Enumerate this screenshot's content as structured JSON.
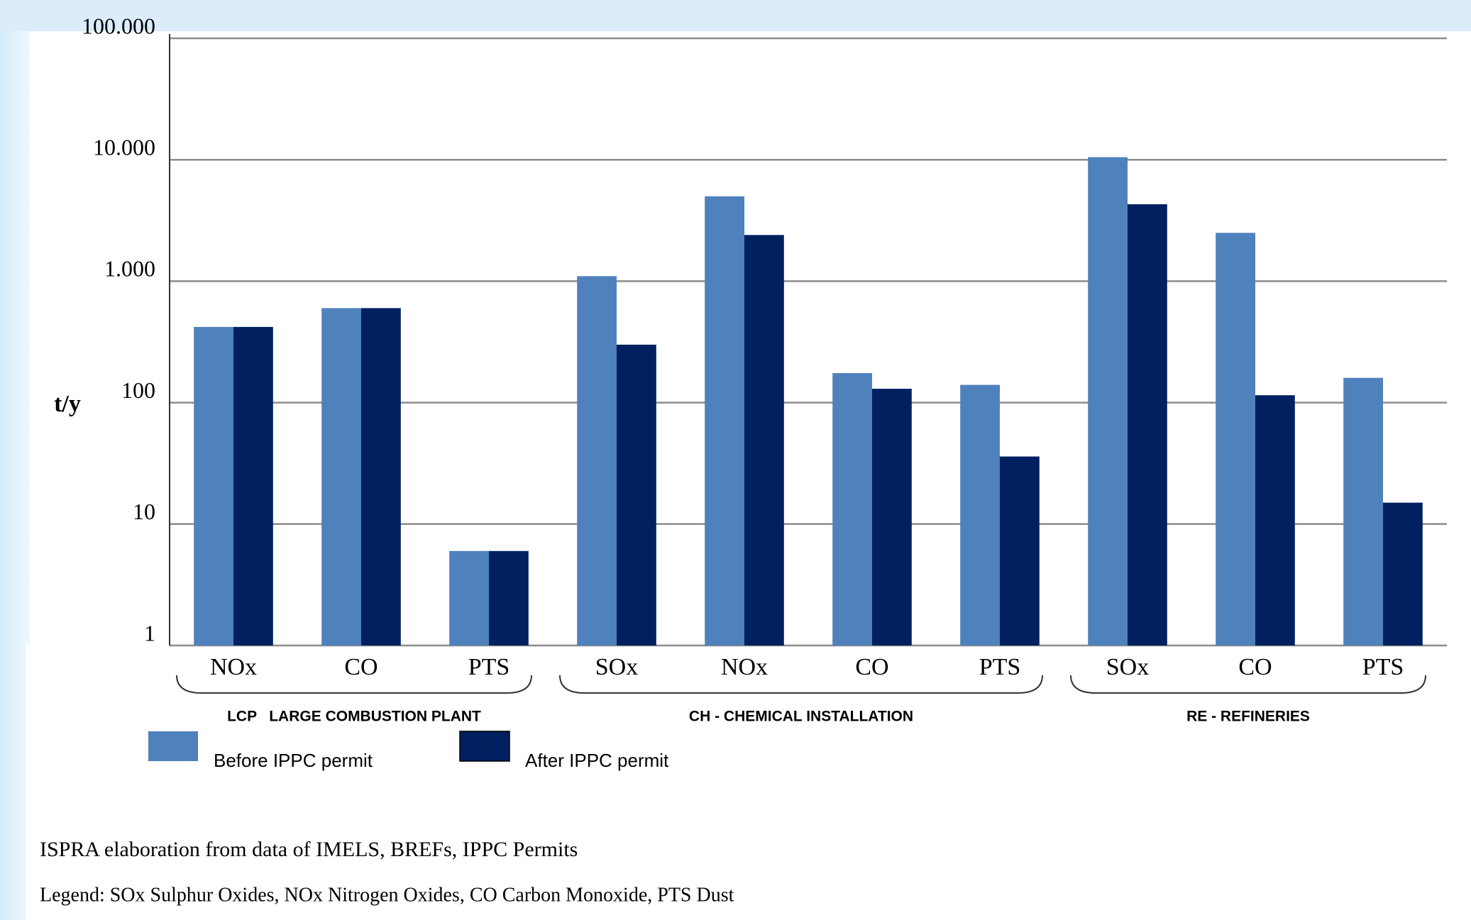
{
  "chart_data": {
    "type": "bar",
    "y_label": "t/y",
    "groups": [
      {
        "name": "LCP   LARGE COMBUSTION PLANT",
        "categories": [
          "NOx",
          "CO",
          "PTS"
        ]
      },
      {
        "name": "CH - CHEMICAL INSTALLATION",
        "categories": [
          "SOx",
          "NOx",
          "CO",
          "PTS"
        ]
      },
      {
        "name": "RE - REFINERIES",
        "categories": [
          "SOx",
          "CO",
          "PTS"
        ]
      }
    ],
    "series": [
      {
        "name": "Before IPPC permit",
        "color": "#4f81bd",
        "values": [
          420,
          600,
          6,
          1100,
          5000,
          175,
          140,
          10500,
          2500,
          160
        ]
      },
      {
        "name": "After IPPC permit",
        "color": "#002060",
        "values": [
          420,
          600,
          6,
          300,
          2400,
          130,
          36,
          4300,
          115,
          15
        ]
      }
    ],
    "log_scale": true,
    "ylim": [
      1,
      100000
    ],
    "yticks": [
      {
        "value": 100000,
        "label": "100.000"
      },
      {
        "value": 10000,
        "label": "10.000"
      },
      {
        "value": 1000,
        "label": "1.000"
      },
      100,
      10,
      1
    ],
    "grid": true
  },
  "footnotes": [
    "ISPRA elaboration from data of IMELS, BREFs, IPPC Permits",
    "Legend: SOx Sulphur Oxides,  NOx Nitrogen Oxides, CO Carbon Monoxide, PTS Dust"
  ]
}
